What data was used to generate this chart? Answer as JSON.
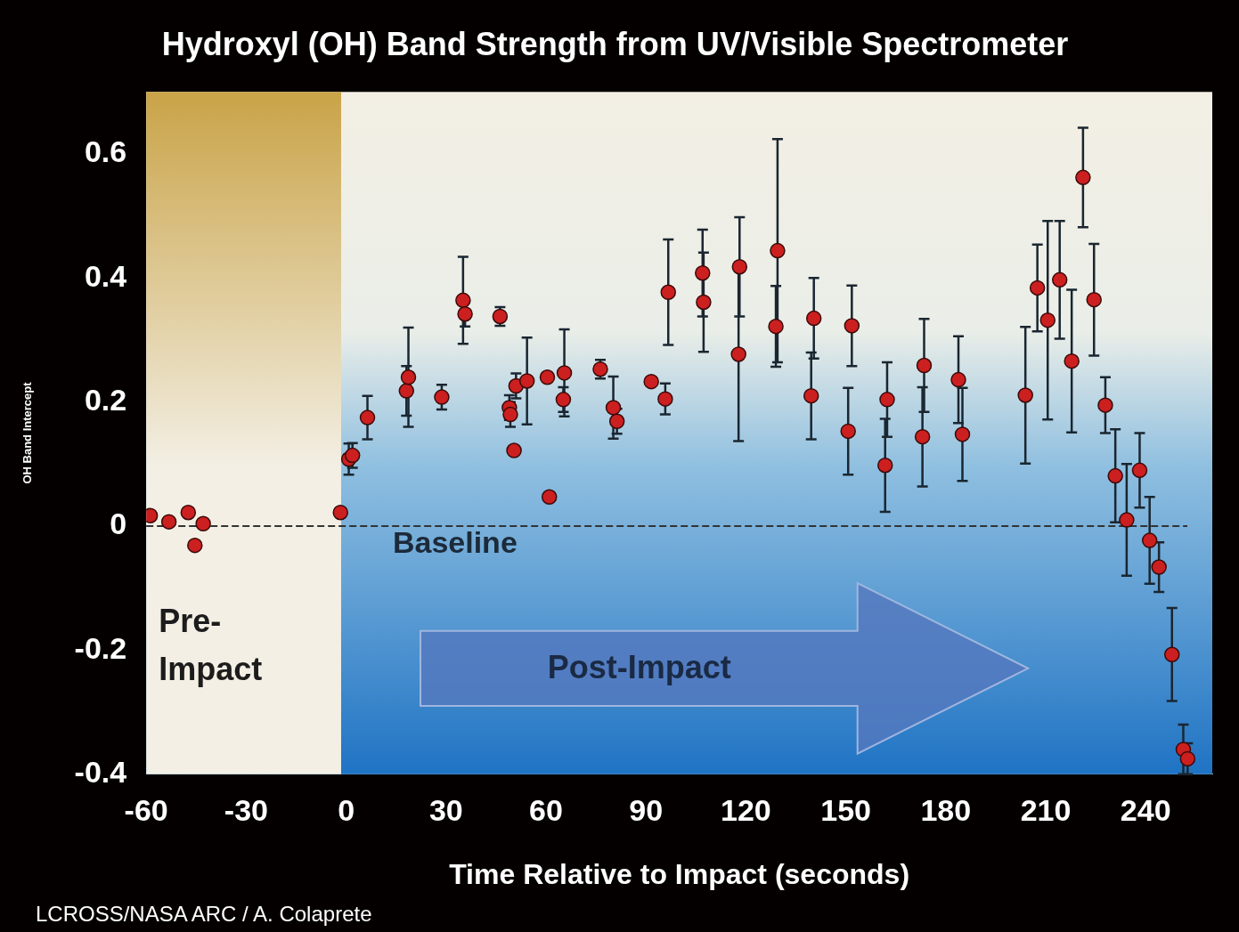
{
  "chart_data": {
    "type": "scatter",
    "title": "Hydroxyl (OH) Band Strength from UV/Visible Spectrometer",
    "xlabel": "Time Relative to Impact (seconds)",
    "ylabel": "OH Band Intercept",
    "x": [
      -58.8,
      -53.2,
      -47.4,
      -45.4,
      -42.9,
      -1.7,
      0.8,
      1.9,
      6.4,
      18.1,
      18.7,
      28.7,
      35.1,
      35.7,
      46.2,
      49.0,
      49.3,
      50.4,
      51.0,
      54.3,
      60.4,
      61.0,
      65.2,
      65.5,
      76.3,
      80.2,
      81.3,
      91.6,
      95.8,
      96.7,
      107.0,
      107.3,
      117.8,
      118.1,
      129.0,
      129.5,
      139.6,
      140.4,
      150.7,
      151.8,
      161.8,
      162.4,
      173.0,
      173.5,
      183.8,
      185.0,
      203.9,
      207.5,
      210.6,
      214.2,
      217.8,
      221.2,
      224.5,
      227.9,
      230.9,
      234.3,
      238.2,
      241.2,
      244.0,
      247.9,
      251.3,
      252.6
    ],
    "series": [
      {
        "color": "#cc1f1f",
        "values": [
          0.017,
          0.007,
          0.022,
          -0.031,
          0.004,
          0.022,
          0.108,
          0.114,
          0.175,
          0.218,
          0.24,
          0.208,
          0.364,
          0.342,
          0.338,
          0.191,
          0.18,
          0.122,
          0.226,
          0.234,
          0.24,
          0.047,
          0.204,
          0.247,
          0.253,
          0.191,
          0.169,
          0.233,
          0.205,
          0.377,
          0.408,
          0.361,
          0.277,
          0.418,
          0.322,
          0.444,
          0.21,
          0.335,
          0.153,
          0.323,
          0.098,
          0.204,
          0.144,
          0.259,
          0.236,
          0.148,
          0.211,
          0.384,
          0.332,
          0.397,
          0.266,
          0.562,
          0.365,
          0.195,
          0.081,
          0.01,
          0.09,
          -0.023,
          -0.066,
          -0.207,
          -0.36,
          -0.375
        ],
        "errors": [
          null,
          null,
          null,
          null,
          null,
          null,
          0.025,
          0.02,
          0.035,
          0.04,
          0.08,
          0.02,
          0.07,
          0.02,
          0.015,
          0.02,
          0.02,
          null,
          0.02,
          0.07,
          null,
          null,
          0.02,
          0.07,
          0.015,
          0.05,
          0.02,
          null,
          0.025,
          0.085,
          0.07,
          0.08,
          0.14,
          0.08,
          0.065,
          0.18,
          0.07,
          0.065,
          0.07,
          0.065,
          0.075,
          0.06,
          0.08,
          0.075,
          0.07,
          0.075,
          0.11,
          0.07,
          0.16,
          0.095,
          0.115,
          0.08,
          0.09,
          0.045,
          0.075,
          0.09,
          0.06,
          0.07,
          0.04,
          0.075,
          0.04,
          0.025
        ]
      }
    ],
    "xlim": [
      -60,
      260
    ],
    "xticks": [
      -60,
      -30,
      0,
      30,
      60,
      90,
      120,
      150,
      180,
      210,
      240
    ],
    "ylim": [
      -0.4,
      0.7
    ],
    "yticks": [
      -0.4,
      -0.2,
      0,
      0.2,
      0.4,
      0.6
    ],
    "ref_lines": [
      {
        "axis": "y",
        "value": 0,
        "label": "Baseline",
        "line_style": "dashed",
        "color": "#333333"
      }
    ],
    "bands": [
      {
        "axis": "x",
        "from": -60,
        "to": -1.5,
        "label": "Pre-Impact",
        "color": "#c9a347"
      }
    ],
    "annotations": [
      "Post-Impact",
      "LCROSS/NASA ARC / A. Colaprete"
    ],
    "marker": "circle",
    "grid": false,
    "legend": false
  }
}
